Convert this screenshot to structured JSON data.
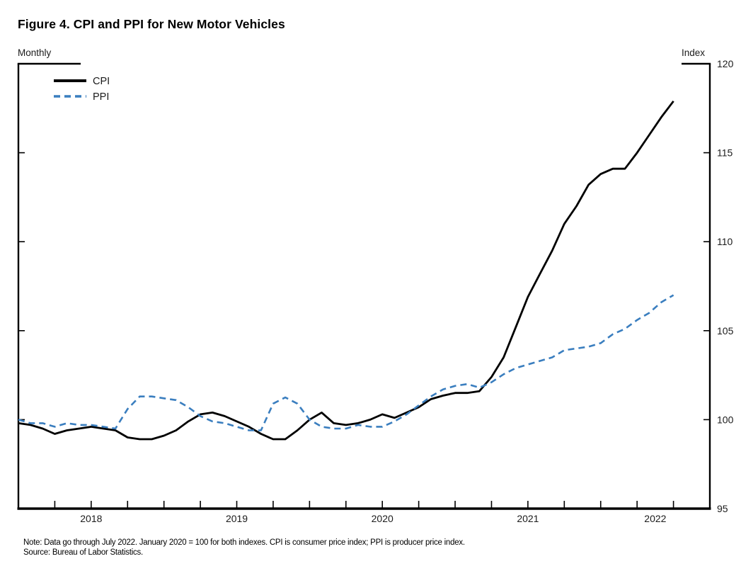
{
  "figure": {
    "title": "Figure 4. CPI and PPI for New Motor Vehicles",
    "frequency_label": "Monthly",
    "unit_label": "Index",
    "note": "Note: Data go through July 2022. January 2020 = 100 for both indexes. CPI is consumer price index; PPI is producer price index.",
    "source": "Source: Bureau of Labor Statistics."
  },
  "colors": {
    "cpi_line": "#000000",
    "ppi_line": "#3a7ebf",
    "axis": "#000000",
    "text": "#1b1b1b"
  },
  "chart_data": {
    "type": "line",
    "title": "Figure 4. CPI and PPI for New Motor Vehicles",
    "frequency": "Monthly",
    "unit": "Index",
    "normalization": "January 2020 = 100 for both indexes",
    "x_start": "2018-01",
    "x_end": "2022-07",
    "x": [
      "2018-01",
      "2018-02",
      "2018-03",
      "2018-04",
      "2018-05",
      "2018-06",
      "2018-07",
      "2018-08",
      "2018-09",
      "2018-10",
      "2018-11",
      "2018-12",
      "2019-01",
      "2019-02",
      "2019-03",
      "2019-04",
      "2019-05",
      "2019-06",
      "2019-07",
      "2019-08",
      "2019-09",
      "2019-10",
      "2019-11",
      "2019-12",
      "2020-01",
      "2020-02",
      "2020-03",
      "2020-04",
      "2020-05",
      "2020-06",
      "2020-07",
      "2020-08",
      "2020-09",
      "2020-10",
      "2020-11",
      "2020-12",
      "2021-01",
      "2021-02",
      "2021-03",
      "2021-04",
      "2021-05",
      "2021-06",
      "2021-07",
      "2021-08",
      "2021-09",
      "2021-10",
      "2021-11",
      "2021-12",
      "2022-01",
      "2022-02",
      "2022-03",
      "2022-04",
      "2022-05",
      "2022-06",
      "2022-07"
    ],
    "series": [
      {
        "name": "CPI",
        "style": "solid",
        "color": "#000000",
        "values": [
          99.8,
          99.7,
          99.5,
          99.2,
          99.4,
          99.5,
          99.6,
          99.5,
          99.4,
          99.0,
          98.9,
          98.9,
          99.1,
          99.4,
          99.9,
          100.3,
          100.4,
          100.2,
          99.9,
          99.6,
          99.2,
          98.9,
          98.9,
          99.4,
          100.0,
          100.4,
          99.8,
          99.7,
          99.8,
          100.0,
          100.3,
          100.1,
          100.4,
          100.7,
          101.15,
          101.35,
          101.5,
          101.5,
          101.6,
          102.4,
          103.5,
          105.2,
          106.9,
          108.2,
          109.5,
          111.0,
          112.0,
          113.2,
          113.8,
          114.1,
          114.1,
          115.0,
          116.0,
          117.0,
          117.9
        ]
      },
      {
        "name": "PPI",
        "style": "dashed",
        "color": "#3a7ebf",
        "values": [
          100.0,
          99.8,
          99.8,
          99.6,
          99.8,
          99.7,
          99.7,
          99.6,
          99.5,
          100.6,
          101.3,
          101.3,
          101.2,
          101.1,
          100.7,
          100.2,
          99.9,
          99.8,
          99.6,
          99.4,
          99.4,
          100.9,
          101.25,
          100.9,
          100.0,
          99.6,
          99.5,
          99.5,
          99.7,
          99.6,
          99.6,
          99.9,
          100.3,
          100.8,
          101.3,
          101.7,
          101.9,
          102.0,
          101.8,
          102.1,
          102.55,
          102.9,
          103.1,
          103.3,
          103.5,
          103.9,
          104.0,
          104.1,
          104.3,
          104.8,
          105.1,
          105.6,
          106.0,
          106.6,
          107.0
        ]
      }
    ],
    "ylim": [
      95,
      120
    ],
    "yticks": [
      95,
      100,
      105,
      110,
      115,
      120
    ],
    "y_inner_ticks": [
      100,
      105,
      110,
      115
    ],
    "x_axis_total_months": 57,
    "quarterly_ticks": {
      "start_month": 3,
      "step": 3,
      "end_month": 54
    },
    "year_labels": [
      {
        "label": "2018",
        "month": 6
      },
      {
        "label": "2019",
        "month": 18
      },
      {
        "label": "2020",
        "month": 30
      },
      {
        "label": "2021",
        "month": 42
      },
      {
        "label": "2022",
        "month": 52.5
      }
    ],
    "legend": {
      "position": "top-left",
      "entries": [
        "CPI",
        "PPI"
      ]
    },
    "grid": false
  }
}
